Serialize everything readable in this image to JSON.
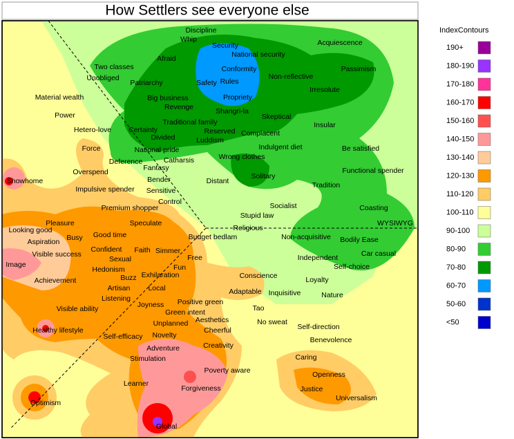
{
  "title": "How Settlers see everyone else",
  "legend": {
    "title": "IndexContours",
    "entries": [
      {
        "label": "190+",
        "color": "#990099"
      },
      {
        "label": "180-190",
        "color": "#9933ff"
      },
      {
        "label": "170-180",
        "color": "#ff3399"
      },
      {
        "label": "160-170",
        "color": "#ff0000"
      },
      {
        "label": "150-160",
        "color": "#ff5050"
      },
      {
        "label": "140-150",
        "color": "#ff9999"
      },
      {
        "label": "130-140",
        "color": "#ffcc99"
      },
      {
        "label": "120-130",
        "color": "#ff9900"
      },
      {
        "label": "110-120",
        "color": "#ffcc66"
      },
      {
        "label": "100-110",
        "color": "#ffff99"
      },
      {
        "label": "90-100",
        "color": "#ccff99"
      },
      {
        "label": "80-90",
        "color": "#33cc33"
      },
      {
        "label": "70-80",
        "color": "#009900"
      },
      {
        "label": "60-70",
        "color": "#0099ff"
      },
      {
        "label": "50-60",
        "color": "#0033cc"
      },
      {
        "label": "<50",
        "color": "#0000cc"
      }
    ]
  },
  "labels": [
    "Discipline",
    "Whip",
    "Security",
    "Acquiescence",
    "National security",
    "Afraid",
    "Two classes",
    "Conformity",
    "Passimism",
    "Unobliged",
    "Patriarchy",
    "Safety",
    "Rules",
    "Non-reflective",
    "Irresolute",
    "Material wealth",
    "Big business",
    "Propriety",
    "Revenge",
    "Shangri-la",
    "Power",
    "Skeptical",
    "Traditional family",
    "Insular",
    "Hetero-love",
    "Certainty",
    "Reserved",
    "Complacent",
    "Divided",
    "Luddism",
    "Force",
    "National pride",
    "Indulgent diet",
    "Be satisfied",
    "Wrong clothes",
    "Deference",
    "Catharsis",
    "Fantasy",
    "Overspend",
    "Functional spender",
    "Solitary",
    "Showhome",
    "Bender",
    "Distant",
    "Tradition",
    "Impulsive spender",
    "Sensitive",
    "Control",
    "Premium  shopper",
    "Socialist",
    "Coasting",
    "Stupid law",
    "Pleasure",
    "Speculate",
    "WYSIWYG",
    "Looking good",
    "Religious",
    "Good time",
    "Busy",
    "Budget bedlam",
    "Non-acquisitive",
    "Bodily Ease",
    "Aspiration",
    "Confident",
    "Faith",
    "Simmer",
    "Visible success",
    "Car casual",
    "Sexual",
    "Free",
    "Independent",
    "Image",
    "Hedonism",
    "Buzz",
    "Fun",
    "Self-choice",
    "Exhilaration",
    "Conscience",
    "Achievement",
    "Artisan",
    "Local",
    "Loyalty",
    "Adaptable",
    "Inquisitive",
    "Nature",
    "Listening",
    "Positive green",
    "Joyness",
    "Visible ability",
    "Green intent",
    "Tao",
    "Aesthetics",
    "Unplanned",
    "No sweat",
    "Self-direction",
    "Healthy lifestyle",
    "Cheerful",
    "Self-efficacy",
    "Novelty",
    "Benevolence",
    "Creativity",
    "Adventure",
    "Stimulation",
    "Caring",
    "Poverty aware",
    "Openness",
    "Learner",
    "Forgiveness",
    "Justice",
    "Universalism",
    "Optimism",
    "Global"
  ]
}
